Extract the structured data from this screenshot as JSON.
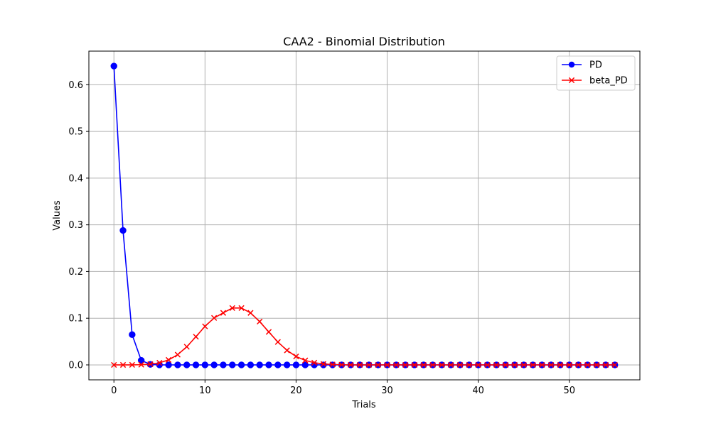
{
  "chart_data": {
    "type": "line",
    "title": "CAA2 - Binomial Distribution",
    "xlabel": "Trials",
    "ylabel": "Values",
    "xlim": [
      -2.75,
      57.75
    ],
    "ylim": [
      -0.032,
      0.672
    ],
    "xticks": [
      0,
      10,
      20,
      30,
      40,
      50
    ],
    "yticks": [
      0.0,
      0.1,
      0.2,
      0.3,
      0.4,
      0.5,
      0.6
    ],
    "xtick_labels": [
      "0",
      "10",
      "20",
      "30",
      "40",
      "50"
    ],
    "ytick_labels": [
      "0.0",
      "0.1",
      "0.2",
      "0.3",
      "0.4",
      "0.5",
      "0.6"
    ],
    "grid": true,
    "legend_position": "top-right",
    "x": [
      0,
      1,
      2,
      3,
      4,
      5,
      6,
      7,
      8,
      9,
      10,
      11,
      12,
      13,
      14,
      15,
      16,
      17,
      18,
      19,
      20,
      21,
      22,
      23,
      24,
      25,
      26,
      27,
      28,
      29,
      30,
      31,
      32,
      33,
      34,
      35,
      36,
      37,
      38,
      39,
      40,
      41,
      42,
      43,
      44,
      45,
      46,
      47,
      48,
      49,
      50,
      51,
      52,
      53,
      54,
      55
    ],
    "series": [
      {
        "name": "PD",
        "color": "#0000ff",
        "marker": "circle",
        "values": [
          0.64,
          0.288,
          0.0648,
          0.0097,
          0.0011,
          0.0001,
          0,
          0,
          0,
          0,
          0,
          0,
          0,
          0,
          0,
          0,
          0,
          0,
          0,
          0,
          0,
          0,
          0,
          0,
          0,
          0,
          0,
          0,
          0,
          0,
          0,
          0,
          0,
          0,
          0,
          0,
          0,
          0,
          0,
          0,
          0,
          0,
          0,
          0,
          0,
          0,
          0,
          0,
          0,
          0,
          0,
          0,
          0,
          0,
          0,
          0
        ]
      },
      {
        "name": "beta_PD",
        "color": "#ff0000",
        "marker": "x",
        "values": [
          0.0,
          0.0,
          0.0001,
          0.0005,
          0.0016,
          0.0045,
          0.0107,
          0.0219,
          0.0389,
          0.0604,
          0.0826,
          0.1006,
          0.1114,
          0.1218,
          0.1218,
          0.1114,
          0.0928,
          0.0707,
          0.0491,
          0.0312,
          0.0181,
          0.0096,
          0.0047,
          0.0021,
          0.0009,
          0.0003,
          0.0001,
          0,
          0,
          0,
          0,
          0,
          0,
          0,
          0,
          0,
          0,
          0,
          0,
          0,
          0,
          0,
          0,
          0,
          0,
          0,
          0,
          0,
          0,
          0,
          0,
          0,
          0,
          0,
          0,
          0
        ]
      }
    ]
  }
}
